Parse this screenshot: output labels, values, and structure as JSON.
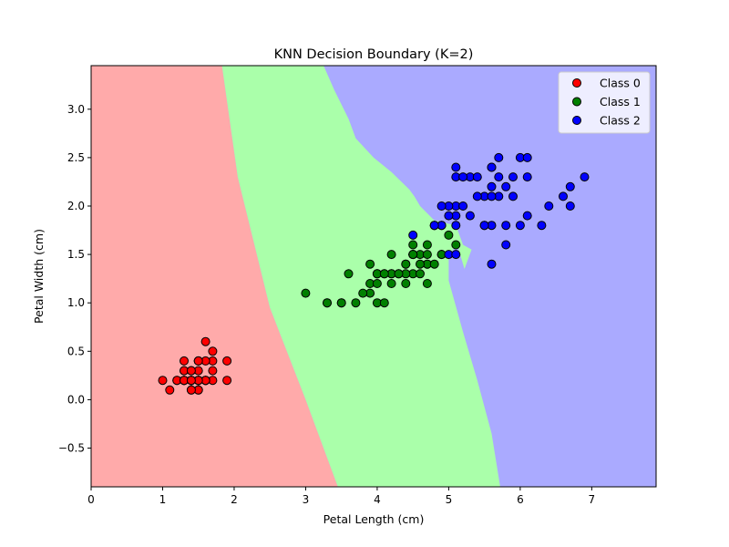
{
  "chart_data": {
    "type": "scatter",
    "title": "KNN Decision Boundary (K=2)",
    "xlabel": "Petal Length (cm)",
    "ylabel": "Petal Width (cm)",
    "xlim": [
      0,
      7.9
    ],
    "ylim": [
      -0.9,
      3.45
    ],
    "xticks": [
      0,
      1,
      2,
      3,
      4,
      5,
      6,
      7
    ],
    "xtick_labels": [
      "0",
      "1",
      "2",
      "3",
      "4",
      "5",
      "6",
      "7"
    ],
    "yticks": [
      -0.5,
      0.0,
      0.5,
      1.0,
      1.5,
      2.0,
      2.5,
      3.0
    ],
    "ytick_labels": [
      "−0.5",
      "0.0",
      "0.5",
      "1.0",
      "1.5",
      "2.0",
      "2.5",
      "3.0"
    ],
    "grid": false,
    "legend_position": "top-right",
    "regions": [
      {
        "class": "Class 0",
        "color": "#ffaaaa",
        "polygon": [
          [
            0,
            -0.9
          ],
          [
            0,
            3.45
          ],
          [
            1.83,
            3.45
          ],
          [
            2.05,
            2.3
          ],
          [
            2.5,
            0.95
          ],
          [
            3.0,
            0.0
          ],
          [
            3.45,
            -0.9
          ]
        ]
      },
      {
        "class": "Class 1",
        "color": "#aaffaa",
        "polygon": [
          [
            1.83,
            3.45
          ],
          [
            3.25,
            3.45
          ],
          [
            3.4,
            3.2
          ],
          [
            3.6,
            2.9
          ],
          [
            3.7,
            2.7
          ],
          [
            3.95,
            2.5
          ],
          [
            4.2,
            2.35
          ],
          [
            4.45,
            2.17
          ],
          [
            4.52,
            2.1
          ],
          [
            4.6,
            2.0
          ],
          [
            4.8,
            1.85
          ],
          [
            5.1,
            1.8
          ],
          [
            5.2,
            1.6
          ],
          [
            5.32,
            1.55
          ],
          [
            5.22,
            1.35
          ],
          [
            5.12,
            1.6
          ],
          [
            5.0,
            1.5
          ],
          [
            5.0,
            1.23
          ],
          [
            5.2,
            0.7
          ],
          [
            5.4,
            0.2
          ],
          [
            5.6,
            -0.35
          ],
          [
            5.72,
            -0.9
          ],
          [
            3.45,
            -0.9
          ],
          [
            3.0,
            0.0
          ],
          [
            2.5,
            0.95
          ],
          [
            2.05,
            2.3
          ]
        ]
      }
    ],
    "background_color": "#aaaaff",
    "series": [
      {
        "name": "Class 0",
        "color": "#ff0000",
        "points": [
          [
            1.4,
            0.2
          ],
          [
            1.4,
            0.2
          ],
          [
            1.3,
            0.2
          ],
          [
            1.5,
            0.2
          ],
          [
            1.4,
            0.2
          ],
          [
            1.7,
            0.4
          ],
          [
            1.4,
            0.3
          ],
          [
            1.5,
            0.2
          ],
          [
            1.4,
            0.2
          ],
          [
            1.5,
            0.1
          ],
          [
            1.5,
            0.2
          ],
          [
            1.6,
            0.2
          ],
          [
            1.4,
            0.1
          ],
          [
            1.1,
            0.1
          ],
          [
            1.2,
            0.2
          ],
          [
            1.5,
            0.4
          ],
          [
            1.3,
            0.4
          ],
          [
            1.4,
            0.3
          ],
          [
            1.7,
            0.3
          ],
          [
            1.5,
            0.3
          ],
          [
            1.7,
            0.2
          ],
          [
            1.5,
            0.4
          ],
          [
            1.0,
            0.2
          ],
          [
            1.7,
            0.5
          ],
          [
            1.9,
            0.2
          ],
          [
            1.6,
            0.2
          ],
          [
            1.6,
            0.4
          ],
          [
            1.5,
            0.2
          ],
          [
            1.4,
            0.2
          ],
          [
            1.6,
            0.2
          ],
          [
            1.6,
            0.2
          ],
          [
            1.5,
            0.4
          ],
          [
            1.5,
            0.1
          ],
          [
            1.4,
            0.2
          ],
          [
            1.5,
            0.2
          ],
          [
            1.2,
            0.2
          ],
          [
            1.3,
            0.2
          ],
          [
            1.4,
            0.1
          ],
          [
            1.3,
            0.2
          ],
          [
            1.5,
            0.2
          ],
          [
            1.3,
            0.3
          ],
          [
            1.3,
            0.3
          ],
          [
            1.3,
            0.2
          ],
          [
            1.6,
            0.6
          ],
          [
            1.9,
            0.4
          ],
          [
            1.4,
            0.3
          ],
          [
            1.6,
            0.2
          ],
          [
            1.4,
            0.2
          ],
          [
            1.5,
            0.2
          ],
          [
            1.4,
            0.2
          ]
        ]
      },
      {
        "name": "Class 1",
        "color": "#008000",
        "points": [
          [
            4.7,
            1.4
          ],
          [
            4.5,
            1.5
          ],
          [
            4.9,
            1.5
          ],
          [
            4.0,
            1.3
          ],
          [
            4.6,
            1.5
          ],
          [
            4.5,
            1.3
          ],
          [
            4.7,
            1.6
          ],
          [
            3.3,
            1.0
          ],
          [
            4.6,
            1.3
          ],
          [
            3.9,
            1.4
          ],
          [
            3.5,
            1.0
          ],
          [
            4.2,
            1.5
          ],
          [
            4.0,
            1.0
          ],
          [
            4.7,
            1.4
          ],
          [
            3.6,
            1.3
          ],
          [
            4.4,
            1.4
          ],
          [
            4.5,
            1.5
          ],
          [
            4.1,
            1.0
          ],
          [
            4.5,
            1.5
          ],
          [
            3.9,
            1.1
          ],
          [
            4.8,
            1.8
          ],
          [
            4.0,
            1.3
          ],
          [
            4.9,
            1.5
          ],
          [
            4.7,
            1.2
          ],
          [
            4.3,
            1.3
          ],
          [
            4.4,
            1.4
          ],
          [
            4.8,
            1.4
          ],
          [
            5.0,
            1.7
          ],
          [
            4.5,
            1.5
          ],
          [
            3.5,
            1.0
          ],
          [
            3.8,
            1.1
          ],
          [
            3.7,
            1.0
          ],
          [
            3.9,
            1.2
          ],
          [
            5.1,
            1.6
          ],
          [
            4.5,
            1.5
          ],
          [
            4.5,
            1.6
          ],
          [
            4.7,
            1.5
          ],
          [
            4.4,
            1.3
          ],
          [
            4.1,
            1.3
          ],
          [
            4.0,
            1.3
          ],
          [
            4.4,
            1.2
          ],
          [
            4.6,
            1.4
          ],
          [
            4.0,
            1.2
          ],
          [
            3.3,
            1.0
          ],
          [
            4.2,
            1.3
          ],
          [
            4.2,
            1.2
          ],
          [
            4.2,
            1.3
          ],
          [
            4.3,
            1.3
          ],
          [
            3.0,
            1.1
          ],
          [
            4.1,
            1.3
          ]
        ]
      },
      {
        "name": "Class 2",
        "color": "#0000ff",
        "points": [
          [
            6.0,
            2.5
          ],
          [
            5.1,
            1.9
          ],
          [
            5.9,
            2.1
          ],
          [
            5.6,
            1.8
          ],
          [
            5.8,
            2.2
          ],
          [
            6.6,
            2.1
          ],
          [
            4.5,
            1.7
          ],
          [
            6.3,
            1.8
          ],
          [
            5.8,
            1.8
          ],
          [
            6.1,
            2.5
          ],
          [
            5.1,
            2.0
          ],
          [
            5.3,
            1.9
          ],
          [
            5.5,
            2.1
          ],
          [
            5.0,
            2.0
          ],
          [
            5.1,
            2.4
          ],
          [
            5.3,
            2.3
          ],
          [
            5.5,
            1.8
          ],
          [
            6.7,
            2.2
          ],
          [
            6.9,
            2.3
          ],
          [
            5.0,
            1.5
          ],
          [
            5.7,
            2.3
          ],
          [
            4.9,
            2.0
          ],
          [
            6.7,
            2.0
          ],
          [
            4.9,
            1.8
          ],
          [
            5.7,
            2.1
          ],
          [
            6.0,
            1.8
          ],
          [
            4.8,
            1.8
          ],
          [
            4.9,
            1.8
          ],
          [
            5.6,
            2.1
          ],
          [
            5.8,
            1.6
          ],
          [
            6.1,
            1.9
          ],
          [
            6.4,
            2.0
          ],
          [
            5.6,
            2.2
          ],
          [
            5.1,
            1.5
          ],
          [
            5.6,
            1.4
          ],
          [
            6.1,
            2.3
          ],
          [
            5.6,
            2.4
          ],
          [
            5.5,
            1.8
          ],
          [
            4.8,
            1.8
          ],
          [
            5.4,
            2.1
          ],
          [
            5.6,
            2.4
          ],
          [
            5.1,
            2.3
          ],
          [
            5.9,
            2.3
          ],
          [
            5.7,
            2.5
          ],
          [
            5.2,
            2.3
          ],
          [
            5.0,
            1.9
          ],
          [
            5.2,
            2.0
          ],
          [
            5.4,
            2.3
          ],
          [
            5.1,
            1.8
          ]
        ]
      }
    ]
  }
}
